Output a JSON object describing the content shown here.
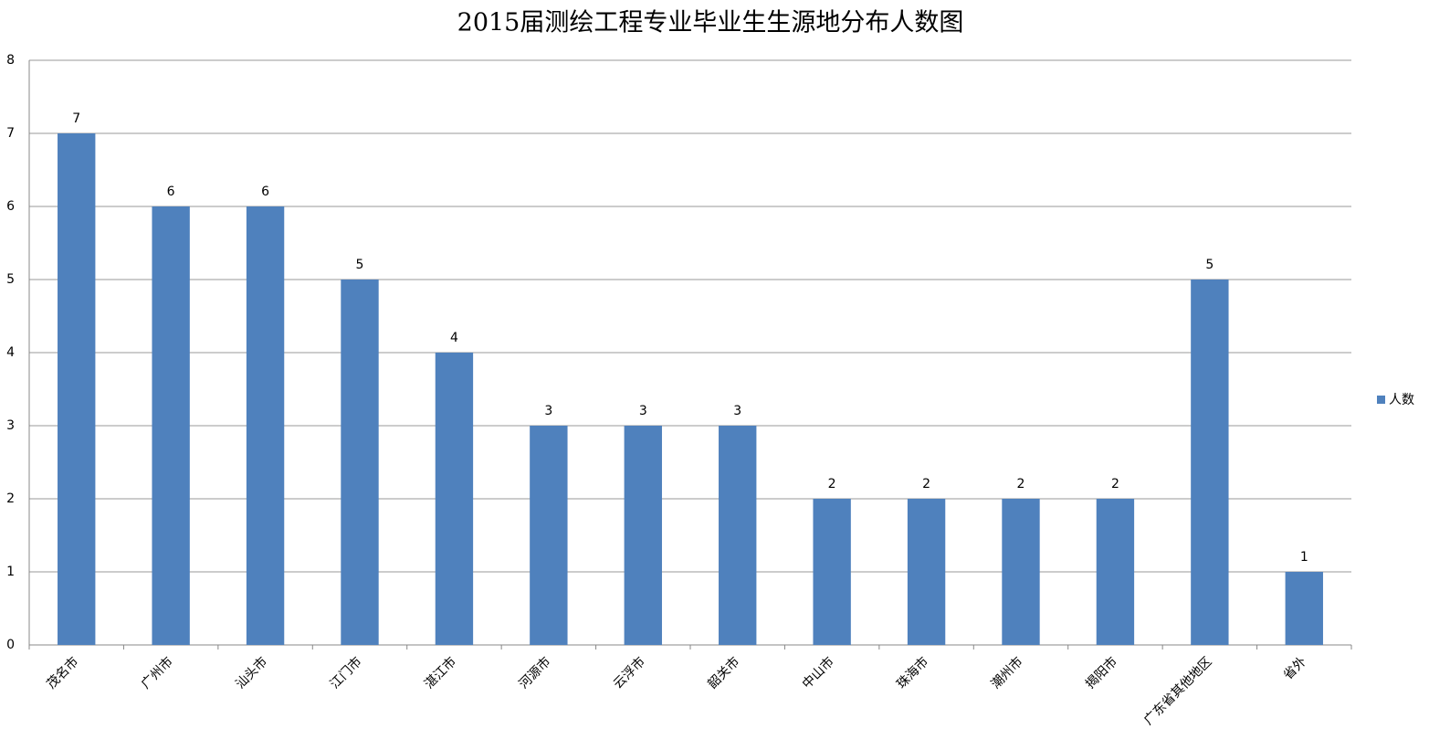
{
  "chart_data": {
    "type": "bar",
    "title": "2015届测绘工程专业毕业生生源地分布人数图",
    "categories": [
      "茂名市",
      "广州市",
      "汕头市",
      "江门市",
      "湛江市",
      "河源市",
      "云浮市",
      "韶关市",
      "中山市",
      "珠海市",
      "潮州市",
      "揭阳市",
      "广东省其他地区",
      "省外"
    ],
    "series": [
      {
        "name": "人数",
        "color": "#4f81bd",
        "values": [
          7,
          6,
          6,
          5,
          4,
          3,
          3,
          3,
          2,
          2,
          2,
          2,
          5,
          1
        ]
      }
    ],
    "ylim": [
      0,
      8
    ],
    "yticks": [
      0,
      1,
      2,
      3,
      4,
      5,
      6,
      7,
      8
    ],
    "grid": true,
    "legend": "right",
    "data_labels": true
  }
}
